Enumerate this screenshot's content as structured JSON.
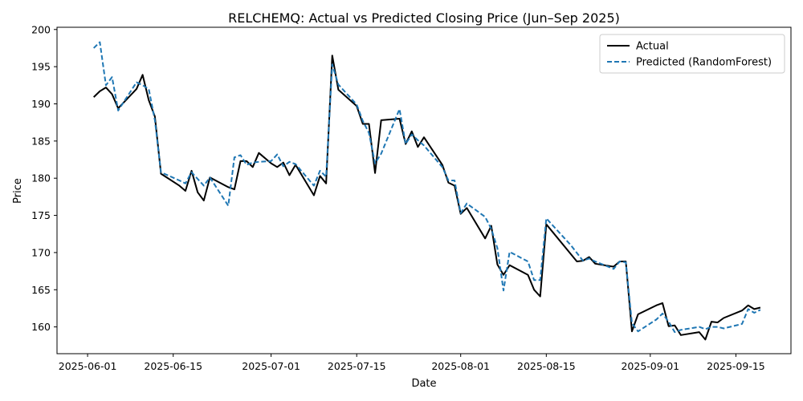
{
  "chart_data": {
    "type": "line",
    "title": "RELCHEMQ: Actual vs Predicted Closing Price (Jun–Sep 2025)",
    "xlabel": "Date",
    "ylabel": "Price",
    "xlim": [
      "2025-05-27",
      "2025-09-24"
    ],
    "ylim": [
      156.4,
      200.3
    ],
    "x_ticks": [
      "2025-06-01",
      "2025-06-15",
      "2025-07-01",
      "2025-07-15",
      "2025-08-01",
      "2025-08-15",
      "2025-09-01",
      "2025-09-15"
    ],
    "y_ticks": [
      160,
      165,
      170,
      175,
      180,
      185,
      190,
      195,
      200
    ],
    "grid": false,
    "legend_position": "top-right",
    "series": [
      {
        "name": "Actual",
        "color": "#000000",
        "style": "solid",
        "points": [
          [
            "2025-06-02",
            190.9
          ],
          [
            "2025-06-03",
            191.7
          ],
          [
            "2025-06-04",
            192.2
          ],
          [
            "2025-06-05",
            191.3
          ],
          [
            "2025-06-06",
            189.4
          ],
          [
            "2025-06-09",
            192.0
          ],
          [
            "2025-06-10",
            193.9
          ],
          [
            "2025-06-11",
            190.5
          ],
          [
            "2025-06-12",
            188.3
          ],
          [
            "2025-06-13",
            180.6
          ],
          [
            "2025-06-16",
            179.0
          ],
          [
            "2025-06-17",
            178.3
          ],
          [
            "2025-06-18",
            181.0
          ],
          [
            "2025-06-19",
            178.1
          ],
          [
            "2025-06-20",
            177.0
          ],
          [
            "2025-06-21",
            180.1
          ],
          [
            "2025-06-24",
            178.8
          ],
          [
            "2025-06-25",
            178.5
          ],
          [
            "2025-06-26",
            182.3
          ],
          [
            "2025-06-27",
            182.3
          ],
          [
            "2025-06-28",
            181.5
          ],
          [
            "2025-06-29",
            183.4
          ],
          [
            "2025-07-01",
            182.0
          ],
          [
            "2025-07-02",
            181.5
          ],
          [
            "2025-07-03",
            182.1
          ],
          [
            "2025-07-04",
            180.4
          ],
          [
            "2025-07-05",
            181.8
          ],
          [
            "2025-07-08",
            177.7
          ],
          [
            "2025-07-09",
            180.3
          ],
          [
            "2025-07-10",
            179.3
          ],
          [
            "2025-07-11",
            196.5
          ],
          [
            "2025-07-12",
            191.9
          ],
          [
            "2025-07-15",
            189.7
          ],
          [
            "2025-07-16",
            187.3
          ],
          [
            "2025-07-17",
            187.3
          ],
          [
            "2025-07-18",
            180.7
          ],
          [
            "2025-07-19",
            187.8
          ],
          [
            "2025-07-22",
            188.0
          ],
          [
            "2025-07-23",
            184.6
          ],
          [
            "2025-07-24",
            186.3
          ],
          [
            "2025-07-25",
            184.2
          ],
          [
            "2025-07-26",
            185.5
          ],
          [
            "2025-07-29",
            181.8
          ],
          [
            "2025-07-30",
            179.4
          ],
          [
            "2025-07-31",
            179.0
          ],
          [
            "2025-08-01",
            175.2
          ],
          [
            "2025-08-02",
            176.0
          ],
          [
            "2025-08-05",
            171.9
          ],
          [
            "2025-08-06",
            173.6
          ],
          [
            "2025-08-07",
            168.4
          ],
          [
            "2025-08-08",
            167.0
          ],
          [
            "2025-08-09",
            168.3
          ],
          [
            "2025-08-12",
            167.0
          ],
          [
            "2025-08-13",
            165.0
          ],
          [
            "2025-08-14",
            164.1
          ],
          [
            "2025-08-15",
            173.8
          ],
          [
            "2025-08-20",
            168.8
          ],
          [
            "2025-08-21",
            168.9
          ],
          [
            "2025-08-22",
            169.4
          ],
          [
            "2025-08-23",
            168.5
          ],
          [
            "2025-08-26",
            168.1
          ],
          [
            "2025-08-27",
            168.8
          ],
          [
            "2025-08-28",
            168.8
          ],
          [
            "2025-08-29",
            159.4
          ],
          [
            "2025-08-30",
            161.7
          ],
          [
            "2025-09-02",
            162.9
          ],
          [
            "2025-09-03",
            163.2
          ],
          [
            "2025-09-04",
            160.1
          ],
          [
            "2025-09-05",
            160.2
          ],
          [
            "2025-09-06",
            158.9
          ],
          [
            "2025-09-09",
            159.3
          ],
          [
            "2025-09-10",
            158.3
          ],
          [
            "2025-09-11",
            160.7
          ],
          [
            "2025-09-12",
            160.6
          ],
          [
            "2025-09-13",
            161.2
          ],
          [
            "2025-09-16",
            162.2
          ],
          [
            "2025-09-17",
            162.9
          ],
          [
            "2025-09-18",
            162.4
          ],
          [
            "2025-09-19",
            162.6
          ]
        ]
      },
      {
        "name": "Predicted (RandomForest)",
        "color": "#1f77b4",
        "style": "dashed",
        "points": [
          [
            "2025-06-02",
            197.5
          ],
          [
            "2025-06-03",
            198.3
          ],
          [
            "2025-06-04",
            192.5
          ],
          [
            "2025-06-05",
            193.6
          ],
          [
            "2025-06-06",
            189.1
          ],
          [
            "2025-06-09",
            192.9
          ],
          [
            "2025-06-10",
            192.5
          ],
          [
            "2025-06-11",
            192.0
          ],
          [
            "2025-06-12",
            187.8
          ],
          [
            "2025-06-13",
            180.8
          ],
          [
            "2025-06-16",
            179.7
          ],
          [
            "2025-06-17",
            179.3
          ],
          [
            "2025-06-18",
            180.8
          ],
          [
            "2025-06-19",
            179.9
          ],
          [
            "2025-06-20",
            179.0
          ],
          [
            "2025-06-21",
            180.1
          ],
          [
            "2025-06-24",
            176.3
          ],
          [
            "2025-06-25",
            182.8
          ],
          [
            "2025-06-26",
            183.1
          ],
          [
            "2025-06-27",
            181.8
          ],
          [
            "2025-06-28",
            182.1
          ],
          [
            "2025-06-29",
            182.2
          ],
          [
            "2025-07-01",
            182.3
          ],
          [
            "2025-07-02",
            183.2
          ],
          [
            "2025-07-03",
            181.6
          ],
          [
            "2025-07-04",
            182.2
          ],
          [
            "2025-07-05",
            181.9
          ],
          [
            "2025-07-08",
            179.0
          ],
          [
            "2025-07-09",
            181.0
          ],
          [
            "2025-07-10",
            180.2
          ],
          [
            "2025-07-11",
            195.3
          ],
          [
            "2025-07-12",
            192.6
          ],
          [
            "2025-07-15",
            189.9
          ],
          [
            "2025-07-16",
            187.7
          ],
          [
            "2025-07-17",
            186.1
          ],
          [
            "2025-07-18",
            182.0
          ],
          [
            "2025-07-19",
            183.3
          ],
          [
            "2025-07-22",
            189.3
          ],
          [
            "2025-07-23",
            184.6
          ],
          [
            "2025-07-24",
            185.9
          ],
          [
            "2025-07-25",
            185.1
          ],
          [
            "2025-07-26",
            184.4
          ],
          [
            "2025-07-29",
            181.5
          ],
          [
            "2025-07-30",
            179.7
          ],
          [
            "2025-07-31",
            179.7
          ],
          [
            "2025-08-01",
            175.3
          ],
          [
            "2025-08-02",
            176.6
          ],
          [
            "2025-08-05",
            174.8
          ],
          [
            "2025-08-06",
            173.2
          ],
          [
            "2025-08-07",
            170.6
          ],
          [
            "2025-08-08",
            164.9
          ],
          [
            "2025-08-09",
            170.1
          ],
          [
            "2025-08-12",
            168.8
          ],
          [
            "2025-08-13",
            166.3
          ],
          [
            "2025-08-14",
            166.3
          ],
          [
            "2025-08-15",
            174.6
          ],
          [
            "2025-08-19",
            171.0
          ],
          [
            "2025-08-21",
            168.9
          ],
          [
            "2025-08-22",
            169.2
          ],
          [
            "2025-08-23",
            168.8
          ],
          [
            "2025-08-26",
            167.8
          ],
          [
            "2025-08-27",
            168.8
          ],
          [
            "2025-08-28",
            168.7
          ],
          [
            "2025-08-29",
            160.5
          ],
          [
            "2025-08-30",
            159.4
          ],
          [
            "2025-09-02",
            161.0
          ],
          [
            "2025-09-03",
            161.8
          ],
          [
            "2025-09-04",
            160.7
          ],
          [
            "2025-09-05",
            159.3
          ],
          [
            "2025-09-06",
            159.6
          ],
          [
            "2025-09-09",
            160.0
          ],
          [
            "2025-09-10",
            159.7
          ],
          [
            "2025-09-11",
            160.0
          ],
          [
            "2025-09-12",
            160.0
          ],
          [
            "2025-09-13",
            159.8
          ],
          [
            "2025-09-16",
            160.4
          ],
          [
            "2025-09-17",
            162.4
          ],
          [
            "2025-09-18",
            161.9
          ],
          [
            "2025-09-19",
            162.3
          ]
        ]
      }
    ]
  }
}
